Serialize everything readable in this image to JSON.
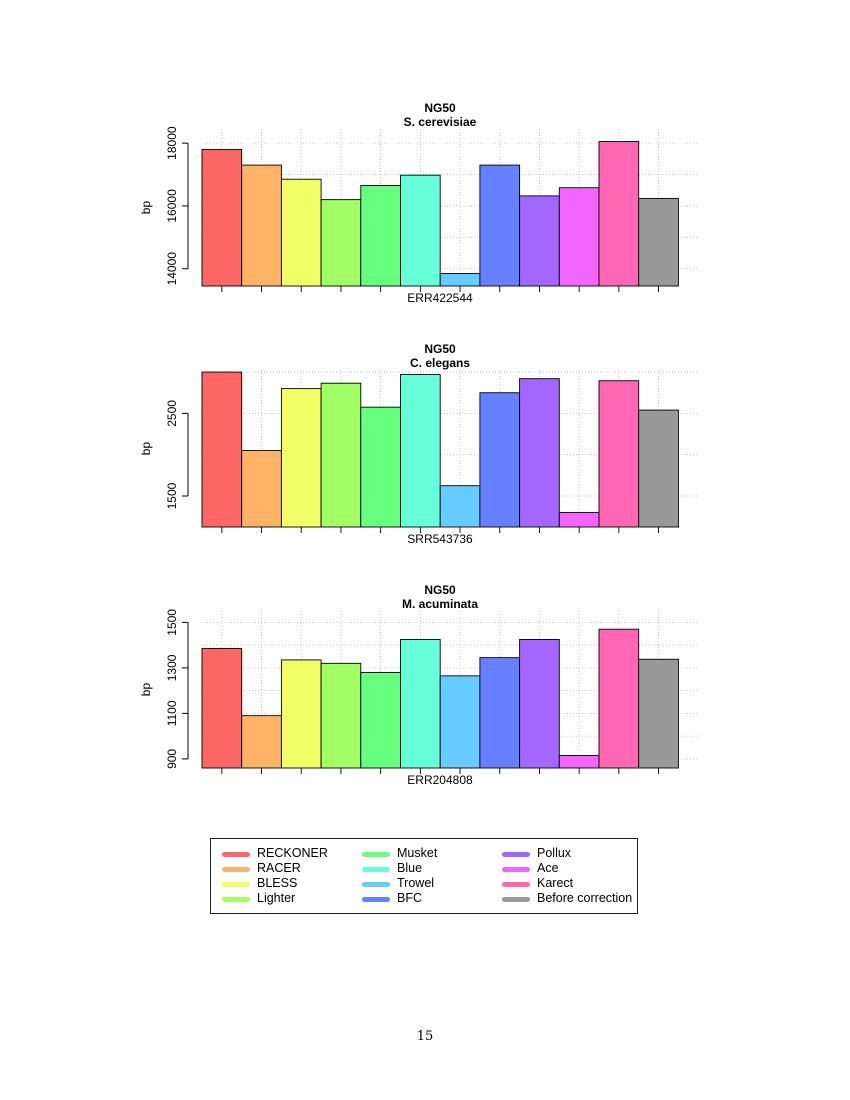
{
  "chart_data": [
    {
      "type": "bar",
      "title": "NG50",
      "subtitle": "S. cerevisiae",
      "xlabel": "ERR422544",
      "ylabel": "bp",
      "ylim": [
        13450,
        18450
      ],
      "yticks": [
        14000,
        16000,
        18000
      ],
      "grid": true,
      "categories": [
        "RECKONER",
        "RACER",
        "BLESS",
        "Lighter",
        "Musket",
        "Blue",
        "Trowel",
        "BFC",
        "Pollux",
        "Ace",
        "Karect",
        "Before correction"
      ],
      "values": [
        17800,
        17300,
        16850,
        16200,
        16650,
        16980,
        13850,
        17300,
        16320,
        16580,
        18050,
        16240
      ]
    },
    {
      "type": "bar",
      "title": "NG50",
      "subtitle": "C. elegans",
      "xlabel": "SRR543736",
      "ylabel": "bp",
      "ylim": [
        1125,
        3025
      ],
      "yticks": [
        1500,
        2500
      ],
      "grid": true,
      "categories": [
        "RECKONER",
        "RACER",
        "BLESS",
        "Lighter",
        "Musket",
        "Blue",
        "Trowel",
        "BFC",
        "Pollux",
        "Ace",
        "Karect",
        "Before correction"
      ],
      "values": [
        3000,
        2050,
        2800,
        2865,
        2575,
        2970,
        1625,
        2750,
        2920,
        1300,
        2895,
        2540
      ]
    },
    {
      "type": "bar",
      "title": "NG50",
      "subtitle": "M. acuminata",
      "xlabel": "ERR204808",
      "ylabel": "bp",
      "ylim": [
        860,
        1550
      ],
      "yticks": [
        900,
        1100,
        1300,
        1500
      ],
      "grid": true,
      "categories": [
        "RECKONER",
        "RACER",
        "BLESS",
        "Lighter",
        "Musket",
        "Blue",
        "Trowel",
        "BFC",
        "Pollux",
        "Ace",
        "Karect",
        "Before correction"
      ],
      "values": [
        1385,
        1090,
        1335,
        1320,
        1280,
        1425,
        1265,
        1345,
        1425,
        915,
        1470,
        1338
      ]
    }
  ],
  "legend": [
    {
      "label": "RECKONER",
      "color": "#ff6666"
    },
    {
      "label": "RACER",
      "color": "#ffb366"
    },
    {
      "label": "BLESS",
      "color": "#f2ff66"
    },
    {
      "label": "Lighter",
      "color": "#a3ff66"
    },
    {
      "label": "Musket",
      "color": "#66ff80"
    },
    {
      "label": "Blue",
      "color": "#66ffd9"
    },
    {
      "label": "Trowel",
      "color": "#66ccff"
    },
    {
      "label": "BFC",
      "color": "#6680ff"
    },
    {
      "label": "Pollux",
      "color": "#a366ff"
    },
    {
      "label": "Ace",
      "color": "#f266ff"
    },
    {
      "label": "Karect",
      "color": "#ff66b3"
    },
    {
      "label": "Before correction",
      "color": "#999999"
    }
  ],
  "page_number": "15"
}
